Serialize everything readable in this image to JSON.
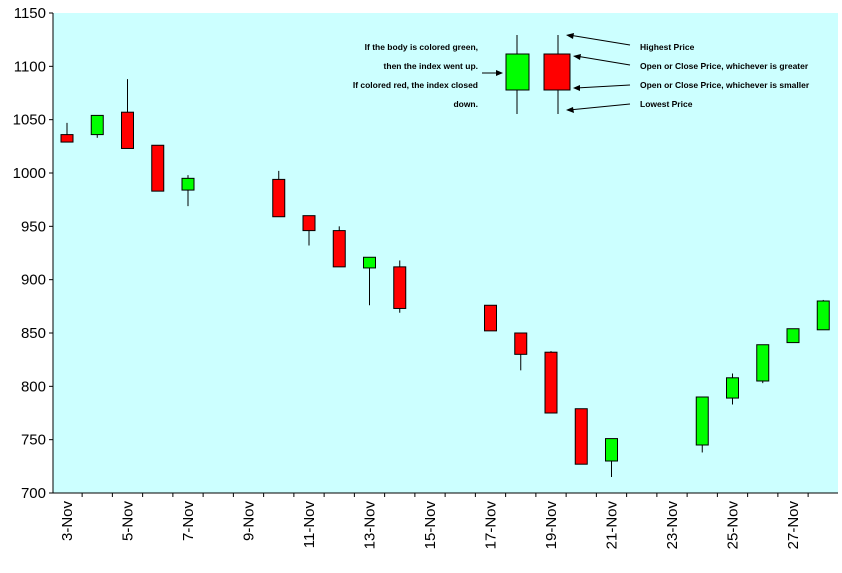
{
  "chart_data": {
    "type": "candlestick",
    "title": "",
    "xlabel": "",
    "ylabel": "",
    "ylim": [
      700,
      1150
    ],
    "yticks": [
      700,
      750,
      800,
      850,
      900,
      950,
      1000,
      1050,
      1100,
      1150
    ],
    "grid": false,
    "colors": {
      "background": "#ccffff",
      "up": "#00ff00",
      "down": "#ff0000",
      "wick": "#000000"
    },
    "x_tick_labels": [
      "3-Nov",
      "5-Nov",
      "7-Nov",
      "9-Nov",
      "11-Nov",
      "13-Nov",
      "15-Nov",
      "17-Nov",
      "19-Nov",
      "21-Nov",
      "23-Nov",
      "25-Nov",
      "27-Nov"
    ],
    "dates": [
      "3-Nov",
      "4-Nov",
      "5-Nov",
      "6-Nov",
      "7-Nov",
      "8-Nov",
      "9-Nov",
      "10-Nov",
      "11-Nov",
      "12-Nov",
      "13-Nov",
      "14-Nov",
      "15-Nov",
      "16-Nov",
      "17-Nov",
      "18-Nov",
      "19-Nov",
      "20-Nov",
      "21-Nov",
      "22-Nov",
      "23-Nov",
      "24-Nov",
      "25-Nov",
      "26-Nov",
      "27-Nov",
      "28-Nov"
    ],
    "candles": [
      {
        "date": "3-Nov",
        "open": 1036,
        "close": 1029,
        "high": 1047,
        "low": 1029
      },
      {
        "date": "4-Nov",
        "open": 1036,
        "close": 1054,
        "high": 1054,
        "low": 1033
      },
      {
        "date": "5-Nov",
        "open": 1057,
        "close": 1023,
        "high": 1088,
        "low": 1023
      },
      {
        "date": "6-Nov",
        "open": 1026,
        "close": 983,
        "high": 1026,
        "low": 983
      },
      {
        "date": "7-Nov",
        "open": 984,
        "close": 995,
        "high": 998,
        "low": 969
      },
      {
        "date": "10-Nov",
        "open": 994,
        "close": 959,
        "high": 1002,
        "low": 959
      },
      {
        "date": "11-Nov",
        "open": 960,
        "close": 946,
        "high": 960,
        "low": 932
      },
      {
        "date": "12-Nov",
        "open": 946,
        "close": 912,
        "high": 950,
        "low": 912
      },
      {
        "date": "13-Nov",
        "open": 911,
        "close": 921,
        "high": 921,
        "low": 876
      },
      {
        "date": "14-Nov",
        "open": 912,
        "close": 873,
        "high": 918,
        "low": 869
      },
      {
        "date": "17-Nov",
        "open": 876,
        "close": 852,
        "high": 876,
        "low": 852
      },
      {
        "date": "18-Nov",
        "open": 850,
        "close": 830,
        "high": 850,
        "low": 815
      },
      {
        "date": "19-Nov",
        "open": 832,
        "close": 775,
        "high": 833,
        "low": 775
      },
      {
        "date": "20-Nov",
        "open": 779,
        "close": 727,
        "high": 779,
        "low": 727
      },
      {
        "date": "21-Nov",
        "open": 730,
        "close": 751,
        "high": 751,
        "low": 715
      },
      {
        "date": "24-Nov",
        "open": 745,
        "close": 790,
        "high": 790,
        "low": 738
      },
      {
        "date": "25-Nov",
        "open": 789,
        "close": 808,
        "high": 812,
        "low": 783
      },
      {
        "date": "26-Nov",
        "open": 805,
        "close": 839,
        "high": 839,
        "low": 803
      },
      {
        "date": "27-Nov",
        "open": 841,
        "close": 854,
        "high": 854,
        "low": 841
      },
      {
        "date": "28-Nov",
        "open": 853,
        "close": 880,
        "high": 881,
        "low": 853
      }
    ],
    "legend": {
      "left_text": [
        "If the body is colored green,",
        "then the index went up.",
        "If colored red, the index closed",
        "down."
      ],
      "right_text": [
        "Highest Price",
        "Open or Close Price, whichever is greater",
        "Open or Close Price, whichever is smaller",
        "Lowest Price"
      ]
    }
  }
}
